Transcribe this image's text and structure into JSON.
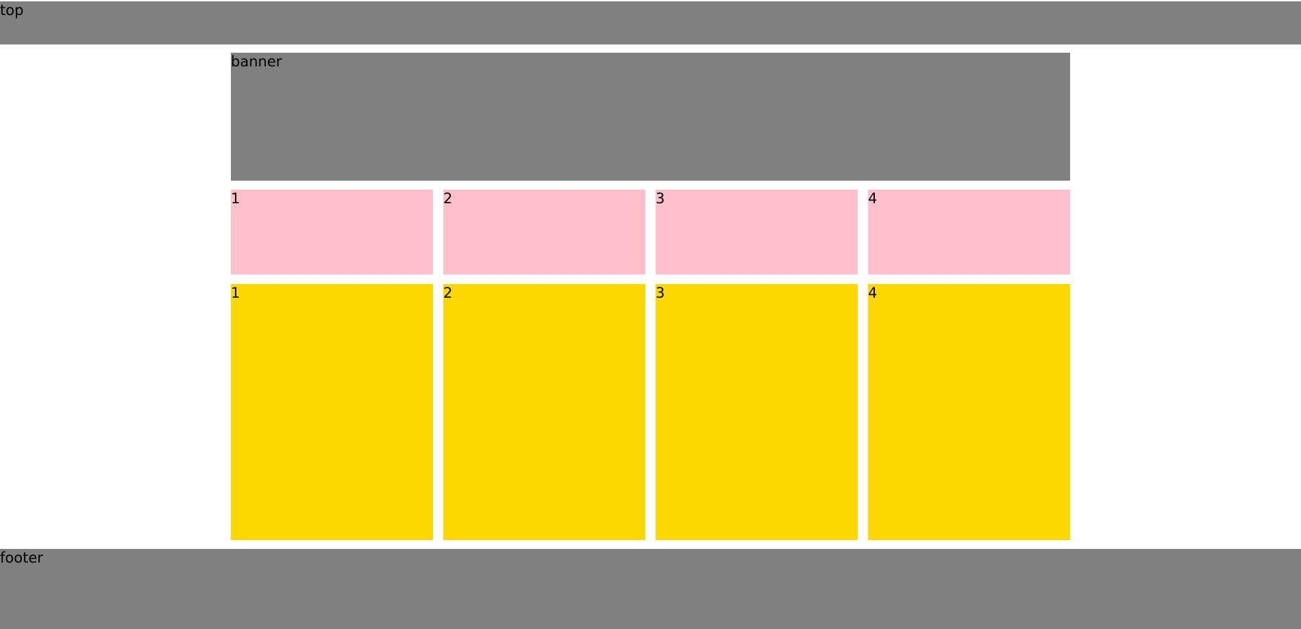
{
  "header": {
    "label": "top",
    "color": "#808080"
  },
  "banner": {
    "label": "banner",
    "color": "#808080"
  },
  "pink_row": {
    "color": "#ffc0cb",
    "items": [
      {
        "label": "1"
      },
      {
        "label": "2"
      },
      {
        "label": "3"
      },
      {
        "label": "4"
      }
    ]
  },
  "gold_row": {
    "color": "#ffd700",
    "items": [
      {
        "label": "1"
      },
      {
        "label": "2"
      },
      {
        "label": "3"
      },
      {
        "label": "4"
      }
    ]
  },
  "footer": {
    "label": "footer",
    "color": "#808080"
  }
}
